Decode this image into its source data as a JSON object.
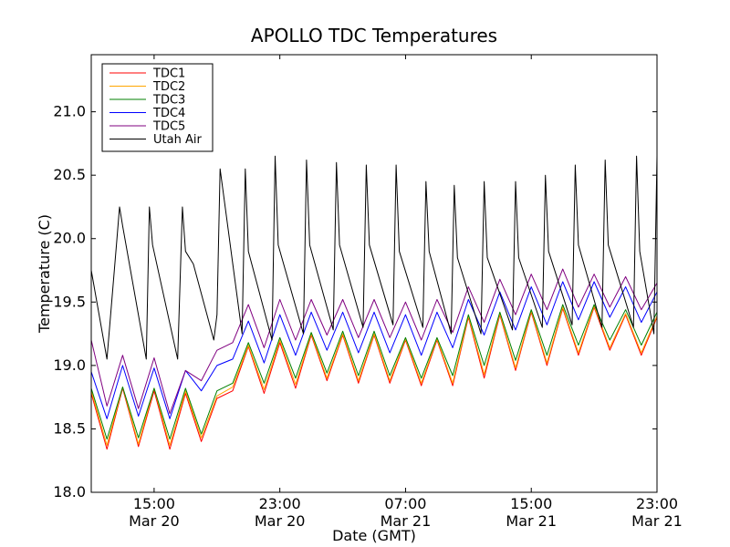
{
  "chart_data": {
    "type": "line",
    "title": "APOLLO TDC Temperatures",
    "xlabel": "Date (GMT)",
    "ylabel": "Temperature (C)",
    "xunit": "hours since Mar 20 11:00 GMT",
    "xlim": [
      0,
      36
    ],
    "ylim": [
      18.0,
      21.45
    ],
    "yticks": [
      18.0,
      18.5,
      19.0,
      19.5,
      20.0,
      20.5,
      21.0
    ],
    "ytick_labels": [
      "18.0",
      "18.5",
      "19.0",
      "19.5",
      "20.0",
      "20.5",
      "21.0"
    ],
    "xticks": [
      {
        "value": 4,
        "time": "15:00",
        "date": "Mar 20"
      },
      {
        "value": 12,
        "time": "23:00",
        "date": "Mar 20"
      },
      {
        "value": 20,
        "time": "07:00",
        "date": "Mar 21"
      },
      {
        "value": 28,
        "time": "15:00",
        "date": "Mar 21"
      },
      {
        "value": 36,
        "time": "23:00",
        "date": "Mar 21"
      }
    ],
    "legend_position": "top-left",
    "series": [
      {
        "name": "TDC1",
        "color": "#ff0000",
        "x": [
          0,
          1,
          2,
          3,
          4,
          5,
          6,
          7,
          8,
          9,
          10,
          11,
          12,
          13,
          14,
          15,
          16,
          17,
          18,
          19,
          20,
          21,
          22,
          23,
          24,
          25,
          26,
          27,
          28,
          29,
          30,
          31,
          32,
          33,
          34,
          35,
          36
        ],
        "y": [
          18.78,
          18.34,
          18.82,
          18.36,
          18.8,
          18.34,
          18.78,
          18.4,
          18.74,
          18.8,
          19.15,
          18.78,
          19.18,
          18.82,
          19.24,
          18.88,
          19.24,
          18.86,
          19.24,
          18.86,
          19.2,
          18.84,
          19.2,
          18.84,
          19.38,
          18.9,
          19.4,
          18.96,
          19.42,
          19.0,
          19.45,
          19.08,
          19.46,
          19.12,
          19.4,
          19.08,
          19.38
        ]
      },
      {
        "name": "TDC2",
        "color": "#ffa500",
        "x": [
          0,
          1,
          2,
          3,
          4,
          5,
          6,
          7,
          8,
          9,
          10,
          11,
          12,
          13,
          14,
          15,
          16,
          17,
          18,
          19,
          20,
          21,
          22,
          23,
          24,
          25,
          26,
          27,
          28,
          29,
          30,
          31,
          32,
          33,
          34,
          35,
          36
        ],
        "y": [
          18.8,
          18.37,
          18.83,
          18.38,
          18.82,
          18.37,
          18.8,
          18.43,
          18.76,
          18.83,
          19.16,
          18.81,
          19.2,
          18.85,
          19.25,
          18.9,
          19.25,
          18.88,
          19.25,
          18.88,
          19.21,
          18.86,
          19.21,
          18.86,
          19.39,
          18.93,
          19.41,
          18.98,
          19.43,
          19.02,
          19.46,
          19.1,
          19.47,
          19.14,
          19.41,
          19.1,
          19.39
        ]
      },
      {
        "name": "TDC3",
        "color": "#008000",
        "x": [
          0,
          1,
          2,
          3,
          4,
          5,
          6,
          7,
          8,
          9,
          10,
          11,
          12,
          13,
          14,
          15,
          16,
          17,
          18,
          19,
          20,
          21,
          22,
          23,
          24,
          25,
          26,
          27,
          28,
          29,
          30,
          31,
          32,
          33,
          34,
          35,
          36
        ],
        "y": [
          18.82,
          18.42,
          18.83,
          18.43,
          18.82,
          18.42,
          18.82,
          18.46,
          18.8,
          18.86,
          19.18,
          18.86,
          19.22,
          18.9,
          19.26,
          18.94,
          19.27,
          18.92,
          19.27,
          18.92,
          19.22,
          18.9,
          19.22,
          18.92,
          19.4,
          19.0,
          19.42,
          19.04,
          19.44,
          19.08,
          19.48,
          19.16,
          19.48,
          19.2,
          19.44,
          19.16,
          19.42
        ]
      },
      {
        "name": "TDC4",
        "color": "#0000ff",
        "x": [
          0,
          1,
          2,
          3,
          4,
          5,
          6,
          7,
          8,
          9,
          10,
          11,
          12,
          13,
          14,
          15,
          16,
          17,
          18,
          19,
          20,
          21,
          22,
          23,
          24,
          25,
          26,
          27,
          28,
          29,
          30,
          31,
          32,
          33,
          34,
          35,
          36
        ],
        "y": [
          18.95,
          18.58,
          19.0,
          18.6,
          18.98,
          18.58,
          18.96,
          18.8,
          19.0,
          19.05,
          19.35,
          19.02,
          19.4,
          19.08,
          19.42,
          19.12,
          19.42,
          19.1,
          19.42,
          19.1,
          19.4,
          19.08,
          19.42,
          19.14,
          19.52,
          19.24,
          19.58,
          19.28,
          19.62,
          19.32,
          19.66,
          19.36,
          19.66,
          19.38,
          19.62,
          19.34,
          19.58
        ]
      },
      {
        "name": "TDC5",
        "color": "#800080",
        "x": [
          0,
          1,
          2,
          3,
          4,
          5,
          6,
          7,
          8,
          9,
          10,
          11,
          12,
          13,
          14,
          15,
          16,
          17,
          18,
          19,
          20,
          21,
          22,
          23,
          24,
          25,
          26,
          27,
          28,
          29,
          30,
          31,
          32,
          33,
          34,
          35,
          36
        ],
        "y": [
          19.2,
          18.68,
          19.08,
          18.66,
          19.06,
          18.62,
          18.96,
          18.88,
          19.12,
          19.18,
          19.48,
          19.14,
          19.52,
          19.2,
          19.52,
          19.24,
          19.52,
          19.22,
          19.52,
          19.22,
          19.5,
          19.2,
          19.52,
          19.26,
          19.62,
          19.34,
          19.68,
          19.4,
          19.72,
          19.44,
          19.76,
          19.46,
          19.72,
          19.46,
          19.7,
          19.44,
          19.65
        ]
      },
      {
        "name": "Utah Air",
        "color": "#000000",
        "x": [
          0,
          1,
          1.6,
          1.8,
          2.0,
          3.5,
          3.7,
          3.9,
          5.5,
          5.8,
          6.0,
          6.5,
          7.8,
          8.0,
          8.2,
          9.6,
          9.8,
          10.0,
          11.5,
          11.7,
          11.9,
          13.5,
          13.7,
          13.9,
          15.4,
          15.6,
          15.8,
          17.3,
          17.5,
          17.7,
          19.2,
          19.4,
          19.6,
          21.1,
          21.3,
          21.5,
          22.9,
          23.1,
          23.3,
          24.8,
          25.0,
          25.2,
          26.8,
          27.0,
          27.2,
          28.7,
          28.9,
          29.1,
          30.6,
          30.8,
          31.0,
          32.5,
          32.7,
          32.9,
          34.5,
          34.7,
          34.9,
          35.8,
          36.0
        ],
        "y": [
          19.75,
          19.05,
          19.95,
          20.25,
          20.1,
          19.05,
          20.25,
          19.95,
          19.05,
          20.25,
          19.9,
          19.8,
          19.2,
          19.4,
          20.55,
          19.25,
          20.55,
          19.9,
          19.2,
          20.65,
          19.95,
          19.25,
          20.62,
          19.95,
          19.28,
          20.6,
          19.95,
          19.3,
          20.58,
          19.95,
          19.32,
          20.58,
          19.9,
          19.3,
          20.45,
          19.9,
          19.25,
          20.42,
          19.85,
          19.25,
          20.45,
          19.85,
          19.28,
          20.45,
          19.85,
          19.3,
          20.5,
          19.9,
          19.32,
          20.58,
          19.95,
          19.3,
          20.62,
          19.95,
          19.3,
          20.65,
          19.9,
          19.25,
          20.65
        ]
      }
    ]
  }
}
